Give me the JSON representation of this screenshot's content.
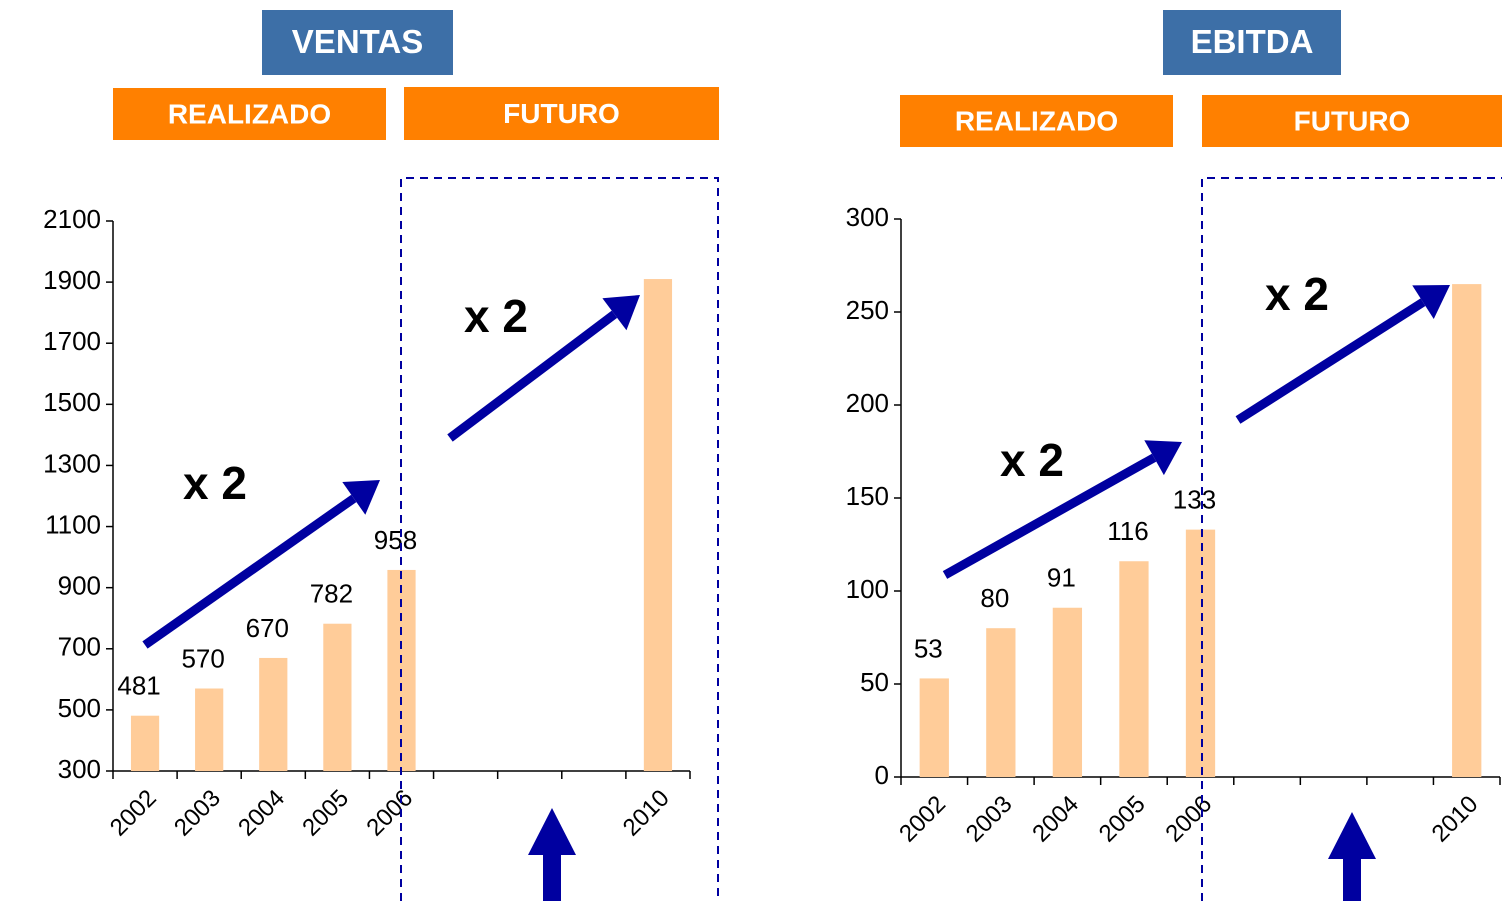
{
  "chart_data": [
    {
      "type": "bar",
      "title": "VENTAS",
      "sections": [
        "REALIZADO",
        "FUTURO"
      ],
      "annotations": [
        "x 2",
        "x 2"
      ],
      "categories": [
        "2002",
        "2003",
        "2004",
        "2005",
        "2006",
        null,
        null,
        null,
        "2010"
      ],
      "values": [
        481,
        570,
        670,
        782,
        958,
        null,
        null,
        null,
        1910
      ],
      "value_labels": [
        "481",
        "570",
        "670",
        "782",
        "958",
        null,
        null,
        null,
        null
      ],
      "color": "#ffcc99",
      "ylim": [
        300,
        2100
      ],
      "yticks": [
        300,
        500,
        700,
        900,
        1100,
        1300,
        1500,
        1700,
        1900,
        2100
      ],
      "grid": false
    },
    {
      "type": "bar",
      "title": "EBITDA",
      "sections": [
        "REALIZADO",
        "FUTURO"
      ],
      "annotations": [
        "x 2",
        "x 2"
      ],
      "categories": [
        "2002",
        "2003",
        "2004",
        "2005",
        "2006",
        null,
        null,
        null,
        "2010"
      ],
      "values": [
        53,
        80,
        91,
        116,
        133,
        null,
        null,
        null,
        265
      ],
      "value_labels": [
        "53",
        "80",
        "91",
        "116",
        "133",
        null,
        null,
        null,
        null
      ],
      "color": "#ffcc99",
      "ylim": [
        0,
        300
      ],
      "yticks": [
        0,
        50,
        100,
        150,
        200,
        250,
        300
      ],
      "grid": false
    }
  ]
}
